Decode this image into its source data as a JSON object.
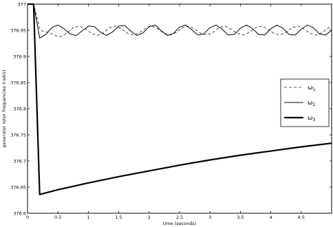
{
  "chart_data": {
    "type": "line",
    "title": "",
    "xlabel": "time (seconds)",
    "ylabel": "generator rotor frequencies (rad/s)",
    "xlim": [
      0,
      5
    ],
    "ylim": [
      376.6,
      377
    ],
    "xticks": [
      0,
      0.5,
      1,
      1.5,
      2,
      2.5,
      3,
      3.5,
      4,
      4.5
    ],
    "xtick_labels": [
      "0",
      "0.5",
      "1",
      "1.5",
      "2",
      "2.5",
      "3",
      "3.5",
      "4",
      "4.5"
    ],
    "yticks": [
      376.6,
      376.65,
      376.7,
      376.75,
      376.8,
      376.85,
      376.9,
      376.95,
      377
    ],
    "ytick_labels": [
      "376.6",
      "376.65",
      "376.7",
      "376.75",
      "376.8",
      "376.85",
      "376.9",
      "376.95",
      "377"
    ],
    "grid": false,
    "legend_position": "right",
    "series": [
      {
        "name": "ω1",
        "legend_base": "ω",
        "legend_sub": "1",
        "color": "#555555",
        "dash": "4,3",
        "width": 1.1,
        "x": [
          0,
          0.1,
          0.2,
          0.25,
          0.35,
          0.45,
          0.55,
          0.65,
          0.75,
          0.85,
          0.95,
          1.05,
          1.15,
          1.25,
          1.35,
          1.45,
          1.55,
          1.65,
          1.75,
          1.85,
          1.95,
          2.05,
          2.15,
          2.25,
          2.35,
          2.45,
          2.55,
          2.65,
          2.75,
          2.85,
          2.95,
          3.05,
          3.15,
          3.25,
          3.35,
          3.45,
          3.55,
          3.65,
          3.75,
          3.85,
          3.95,
          4.05,
          4.15,
          4.25,
          4.35,
          4.45,
          4.55,
          4.65,
          4.75,
          4.85,
          4.95,
          5.0
        ],
        "y": [
          377,
          377,
          376.953,
          376.948,
          376.946,
          376.94,
          376.938,
          376.945,
          376.955,
          376.958,
          376.953,
          376.944,
          376.94,
          376.945,
          376.955,
          376.958,
          376.952,
          376.944,
          376.941,
          376.946,
          376.955,
          376.958,
          376.952,
          376.944,
          376.941,
          376.946,
          376.955,
          376.958,
          376.952,
          376.944,
          376.941,
          376.946,
          376.955,
          376.958,
          376.952,
          376.944,
          376.941,
          376.946,
          376.955,
          376.958,
          376.952,
          376.944,
          376.941,
          376.946,
          376.955,
          376.958,
          376.952,
          376.944,
          376.941,
          376.946,
          376.955,
          376.956
        ]
      },
      {
        "name": "ω2",
        "legend_base": "ω",
        "legend_sub": "2",
        "color": "#000000",
        "dash": "",
        "width": 1.0,
        "x": [
          0,
          0.1,
          0.2,
          0.3,
          0.4,
          0.5,
          0.6,
          0.7,
          0.8,
          0.9,
          1.0,
          1.1,
          1.2,
          1.3,
          1.4,
          1.5,
          1.6,
          1.7,
          1.8,
          1.9,
          2.0,
          2.1,
          2.2,
          2.3,
          2.4,
          2.5,
          2.6,
          2.7,
          2.8,
          2.9,
          3.0,
          3.1,
          3.2,
          3.3,
          3.4,
          3.5,
          3.6,
          3.7,
          3.8,
          3.9,
          4.0,
          4.1,
          4.2,
          4.3,
          4.4,
          4.5,
          4.6,
          4.7,
          4.8,
          4.9,
          5.0
        ],
        "y": [
          377,
          377,
          376.935,
          376.942,
          376.955,
          376.96,
          376.953,
          376.943,
          376.94,
          376.949,
          376.958,
          376.957,
          376.946,
          376.94,
          376.947,
          376.958,
          376.959,
          376.948,
          376.94,
          376.945,
          376.957,
          376.96,
          376.949,
          376.94,
          376.944,
          376.956,
          376.96,
          376.951,
          376.941,
          376.943,
          376.955,
          376.96,
          376.952,
          376.941,
          376.942,
          376.954,
          376.96,
          376.953,
          376.942,
          376.941,
          376.953,
          376.96,
          376.954,
          376.942,
          376.941,
          376.952,
          376.96,
          376.955,
          376.943,
          376.941,
          376.95
        ]
      },
      {
        "name": "ω3",
        "legend_base": "ω",
        "legend_sub": "3",
        "color": "#000000",
        "dash": "",
        "width": 2.2,
        "x": [
          0,
          0.1,
          0.2,
          0.5,
          1.0,
          1.5,
          2.0,
          2.5,
          3.0,
          3.5,
          4.0,
          4.5,
          5.0
        ],
        "y": [
          377,
          377,
          376.636,
          376.645,
          376.658,
          376.67,
          376.681,
          376.692,
          376.702,
          376.711,
          376.719,
          376.727,
          376.734
        ]
      }
    ]
  }
}
